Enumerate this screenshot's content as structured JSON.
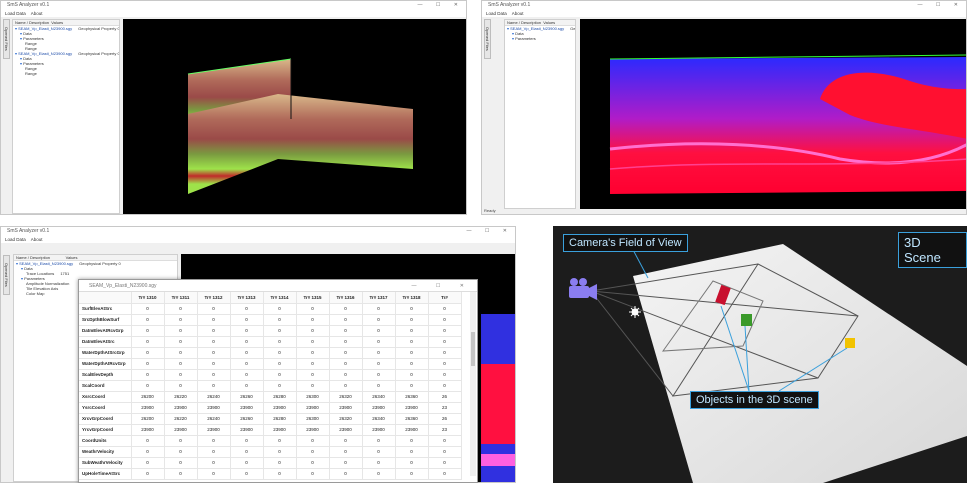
{
  "panel1": {
    "window_title": "SmS Analyzer v0.1",
    "menu": [
      "Load Data",
      "About"
    ],
    "side_tab": "Opened Files",
    "tree_header": [
      "Name / Description",
      "Values"
    ],
    "tree_rows": [
      {
        "indent": 0,
        "name": "SEAM_Vp_Elasti_N23900.sgy",
        "value": "Geophysical Property 0"
      },
      {
        "indent": 1,
        "name": "Data",
        "value": ""
      },
      {
        "indent": 1,
        "name": "Parameters",
        "value": ""
      },
      {
        "indent": 2,
        "name": "Range",
        "value": ""
      },
      {
        "indent": 2,
        "name": "Range",
        "value": ""
      },
      {
        "indent": 0,
        "name": "SEAM_Vp_Elasti_N23900.sgy",
        "value": "Geophysical Property 0"
      },
      {
        "indent": 1,
        "name": "Data",
        "value": ""
      },
      {
        "indent": 1,
        "name": "Parameters",
        "value": ""
      },
      {
        "indent": 2,
        "name": "Range",
        "value": ""
      },
      {
        "indent": 2,
        "name": "Range",
        "value": ""
      }
    ]
  },
  "panel2": {
    "window_title": "SmS Analyzer v0.1",
    "menu": [
      "Load Data",
      "About"
    ],
    "side_tab": "Opened Files",
    "tree_header": [
      "Name / Description",
      "Values"
    ],
    "tree_rows": [
      {
        "indent": 0,
        "name": "SEAM_Vp_Elasti_N23900.sgy",
        "value": "Geophysical Property 0"
      },
      {
        "indent": 1,
        "name": "Data",
        "value": ""
      },
      {
        "indent": 1,
        "name": "Parameters",
        "value": ""
      }
    ],
    "status": "Ready"
  },
  "panel3": {
    "window_title": "SmS Analyzer v0.1",
    "menu": [
      "Load Data",
      "About"
    ],
    "side_tab": "Opened Files",
    "tree_header": [
      "Name / Description",
      "Values"
    ],
    "tree_rows": [
      {
        "indent": 0,
        "name": "SEAM_Vp_Elasti_N23900.sgy",
        "value": "Geophysical Property 0"
      },
      {
        "indent": 1,
        "name": "Data",
        "value": ""
      },
      {
        "indent": 2,
        "name": "Trace Locations",
        "value": "1751"
      },
      {
        "indent": 1,
        "name": "Parameters",
        "value": ""
      },
      {
        "indent": 2,
        "name": "Amplitude Normalization",
        "value": ""
      },
      {
        "indent": 2,
        "name": "Tile Elevation Axis",
        "value": ""
      },
      {
        "indent": 2,
        "name": "Color Map",
        "value": ""
      }
    ],
    "table_window": {
      "title": "SEAM_Vp_Elasti_N23900.sgy",
      "columns": [
        "Tr# 1310",
        "Tr# 1311",
        "Tr# 1312",
        "Tr# 1313",
        "Tr# 1314",
        "Tr# 1315",
        "Tr# 1316",
        "Tr# 1317",
        "Tr# 1318",
        "Tr#"
      ],
      "rows": [
        {
          "label": "SurfElevAtSrc",
          "values": [
            "0",
            "0",
            "0",
            "0",
            "0",
            "0",
            "0",
            "0",
            "0",
            "0"
          ]
        },
        {
          "label": "SrcDpthBlowSurf",
          "values": [
            "0",
            "0",
            "0",
            "0",
            "0",
            "0",
            "0",
            "0",
            "0",
            "0"
          ]
        },
        {
          "label": "DatmElevAtRcvGrp",
          "values": [
            "0",
            "0",
            "0",
            "0",
            "0",
            "0",
            "0",
            "0",
            "0",
            "0"
          ]
        },
        {
          "label": "DatmElevAtSrc",
          "values": [
            "0",
            "0",
            "0",
            "0",
            "0",
            "0",
            "0",
            "0",
            "0",
            "0"
          ]
        },
        {
          "label": "WaterDpthAtSrcGrp",
          "values": [
            "0",
            "0",
            "0",
            "0",
            "0",
            "0",
            "0",
            "0",
            "0",
            "0"
          ]
        },
        {
          "label": "WaterDpthAtRcvGrp",
          "values": [
            "0",
            "0",
            "0",
            "0",
            "0",
            "0",
            "0",
            "0",
            "0",
            "0"
          ]
        },
        {
          "label": "ScalElevDepth",
          "values": [
            "0",
            "0",
            "0",
            "0",
            "0",
            "0",
            "0",
            "0",
            "0",
            "0"
          ]
        },
        {
          "label": "ScalCoord",
          "values": [
            "0",
            "0",
            "0",
            "0",
            "0",
            "0",
            "0",
            "0",
            "0",
            "0"
          ]
        },
        {
          "label": "XsrcCoord",
          "values": [
            "26200",
            "26220",
            "26240",
            "26260",
            "26280",
            "26300",
            "26320",
            "26340",
            "26360",
            "26"
          ]
        },
        {
          "label": "YsrcCoord",
          "values": [
            "23900",
            "23900",
            "23900",
            "23900",
            "23900",
            "23900",
            "23900",
            "23900",
            "23900",
            "23"
          ]
        },
        {
          "label": "XrcvGrpCoord",
          "values": [
            "26200",
            "26220",
            "26240",
            "26260",
            "26280",
            "26300",
            "26320",
            "26340",
            "26360",
            "26"
          ]
        },
        {
          "label": "YrcvGrpCoord",
          "values": [
            "23900",
            "23900",
            "23900",
            "23900",
            "23900",
            "23900",
            "23900",
            "23900",
            "23900",
            "23"
          ]
        },
        {
          "label": "CoordUnits",
          "values": [
            "0",
            "0",
            "0",
            "0",
            "0",
            "0",
            "0",
            "0",
            "0",
            "0"
          ]
        },
        {
          "label": "WeathrVelocity",
          "values": [
            "0",
            "0",
            "0",
            "0",
            "0",
            "0",
            "0",
            "0",
            "0",
            "0"
          ]
        },
        {
          "label": "SubWeathrVelocity",
          "values": [
            "0",
            "0",
            "0",
            "0",
            "0",
            "0",
            "0",
            "0",
            "0",
            "0"
          ]
        },
        {
          "label": "UpHoleTimeAtSrc",
          "values": [
            "0",
            "0",
            "0",
            "0",
            "0",
            "0",
            "0",
            "0",
            "0",
            "0"
          ]
        }
      ]
    }
  },
  "panel4": {
    "label_fov": "Camera's Field of View",
    "label_scene": "3D Scene",
    "label_objects": "Objects in the 3D scene",
    "colors": {
      "callout": "#3aa0dc",
      "red_obj": "#c8102e",
      "green_obj": "#3a9a2a",
      "yellow_obj": "#f2c300",
      "camera": "#8a7df0"
    }
  }
}
